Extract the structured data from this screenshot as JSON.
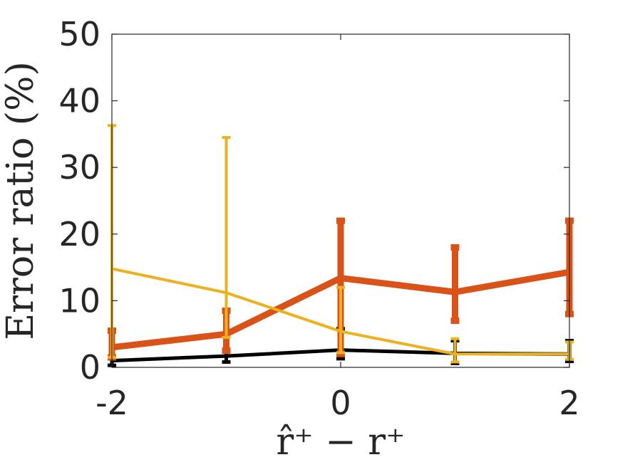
{
  "chart_data": {
    "type": "line",
    "xlabel": "r̂⁺ − r⁺",
    "ylabel": "Error ratio (%)",
    "xlim": [
      -2,
      2
    ],
    "ylim": [
      0,
      50
    ],
    "x_ticks": [
      -2,
      0,
      2
    ],
    "x_tick_labels": [
      "-2",
      "0",
      "2"
    ],
    "y_ticks": [
      0,
      10,
      20,
      30,
      40,
      50
    ],
    "y_tick_labels": [
      "0",
      "10",
      "20",
      "30",
      "40",
      "50"
    ],
    "grid": false,
    "legend": false,
    "series": [
      {
        "color": "#000000",
        "line_width": "thin",
        "points": [
          {
            "x": -2,
            "y": 1.0,
            "low": 0.3,
            "high": 1.6
          },
          {
            "x": -1,
            "y": 1.7,
            "low": 0.8,
            "high": 2.6
          },
          {
            "x": 0,
            "y": 2.6,
            "low": 1.3,
            "high": 5.8
          },
          {
            "x": 1,
            "y": 2.1,
            "low": 0.6,
            "high": 4.0
          },
          {
            "x": 2,
            "y": 2.0,
            "low": 0.9,
            "high": 4.0
          }
        ]
      },
      {
        "color": "#D95319",
        "line_width": "thick",
        "points": [
          {
            "x": -2,
            "y": 3.0,
            "low": 1.5,
            "high": 5.5
          },
          {
            "x": -1,
            "y": 5.0,
            "low": 2.5,
            "high": 8.5
          },
          {
            "x": 0,
            "y": 13.4,
            "low": 2.0,
            "high": 22.0
          },
          {
            "x": 1,
            "y": 11.3,
            "low": 7.0,
            "high": 18.0
          },
          {
            "x": 2,
            "y": 14.3,
            "low": 8.0,
            "high": 22.0
          }
        ]
      },
      {
        "color": "#EDB120",
        "line_width": "medium",
        "points": [
          {
            "x": -2,
            "y": 14.8,
            "low": 1.5,
            "high": 36.3
          },
          {
            "x": -1,
            "y": 11.2,
            "low": 4.5,
            "high": 34.5
          },
          {
            "x": 0,
            "y": 5.4,
            "low": 2.2,
            "high": 12.0
          },
          {
            "x": 1,
            "y": 2.0,
            "low": 0.8,
            "high": 4.3
          },
          {
            "x": 2,
            "y": 2.0,
            "low": 1.2,
            "high": 3.8
          }
        ]
      }
    ]
  }
}
